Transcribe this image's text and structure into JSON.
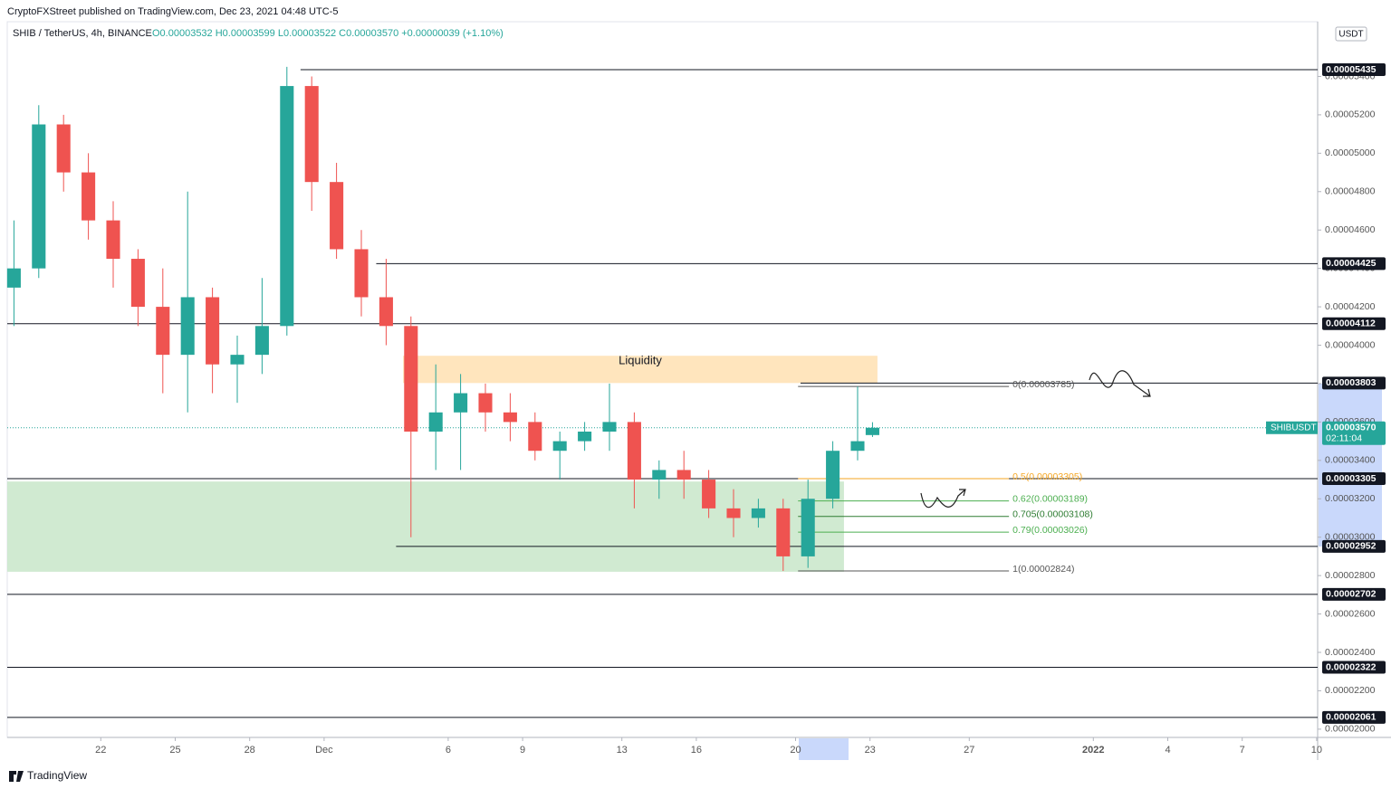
{
  "chart_data": {
    "type": "candlestick",
    "published": "CryptoFXStreet published on TradingView.com, Dec 23, 2021 04:48 UTC-5",
    "title": "SHIB / TetherUS, 4h, BINANCE",
    "ohlc_legend": "O0.00003532 H0.00003599 L0.00003522 C0.00003570 +0.00000039 (+1.10%)",
    "y_unit": "USDT",
    "brand": "TradingView",
    "up_color": "#26a69a",
    "down_color": "#ef5350",
    "x": [
      -11.5,
      -10.5,
      -9.5,
      -8.5,
      -7.5,
      -6.5,
      -5.5,
      -4.5,
      -3.5,
      -2.5,
      -1.5,
      -0.5,
      0.5,
      1.5,
      2.5,
      3.5,
      4.5,
      5.5,
      6.5,
      7.5,
      8.5,
      9.5,
      10.5,
      11.5,
      12.5,
      13.5,
      14.5,
      15.5,
      16.5,
      17.5,
      18.5,
      19.5,
      20.5,
      21.5,
      22.5,
      23.1
    ],
    "open": [
      4.3e-05,
      4.4e-05,
      5.15e-05,
      4.9e-05,
      4.65e-05,
      4.45e-05,
      4.2e-05,
      3.95e-05,
      4.25e-05,
      3.9e-05,
      3.95e-05,
      4.1e-05,
      5.35e-05,
      4.85e-05,
      4.5e-05,
      4.25e-05,
      4.1e-05,
      3.55e-05,
      3.65e-05,
      3.75e-05,
      3.65e-05,
      3.6e-05,
      3.45e-05,
      3.5e-05,
      3.55e-05,
      3.6e-05,
      3.3e-05,
      3.35e-05,
      3.3e-05,
      3.15e-05,
      3.1e-05,
      3.15e-05,
      2.9e-05,
      3.2e-05,
      3.45e-05,
      3.532e-05
    ],
    "high": [
      4.65e-05,
      5.25e-05,
      5.2e-05,
      5e-05,
      4.75e-05,
      4.5e-05,
      4.4e-05,
      4.8e-05,
      4.3e-05,
      4.05e-05,
      4.35e-05,
      5.45e-05,
      5.4e-05,
      4.95e-05,
      4.6e-05,
      4.45e-05,
      4.15e-05,
      3.9e-05,
      3.85e-05,
      3.8e-05,
      3.75e-05,
      3.65e-05,
      3.55e-05,
      3.6e-05,
      3.8e-05,
      3.65e-05,
      3.4e-05,
      3.45e-05,
      3.35e-05,
      3.25e-05,
      3.2e-05,
      3.2e-05,
      3.3e-05,
      3.5e-05,
      3.785e-05,
      3.599e-05
    ],
    "low": [
      4.1e-05,
      4.35e-05,
      4.8e-05,
      4.55e-05,
      4.3e-05,
      4.1e-05,
      3.75e-05,
      3.65e-05,
      3.75e-05,
      3.7e-05,
      3.85e-05,
      4.05e-05,
      4.7e-05,
      4.45e-05,
      4.15e-05,
      4e-05,
      3e-05,
      3.35e-05,
      3.35e-05,
      3.55e-05,
      3.5e-05,
      3.4e-05,
      3.3e-05,
      3.45e-05,
      3.45e-05,
      3.15e-05,
      3.2e-05,
      3.2e-05,
      3.1e-05,
      3e-05,
      3.05e-05,
      2.824e-05,
      2.84e-05,
      3.15e-05,
      3.4e-05,
      3.522e-05
    ],
    "close": [
      4.4e-05,
      5.15e-05,
      4.9e-05,
      4.65e-05,
      4.45e-05,
      4.2e-05,
      3.95e-05,
      4.25e-05,
      3.9e-05,
      3.95e-05,
      4.1e-05,
      5.35e-05,
      4.85e-05,
      4.5e-05,
      4.25e-05,
      4.1e-05,
      3.55e-05,
      3.65e-05,
      3.75e-05,
      3.65e-05,
      3.6e-05,
      3.45e-05,
      3.5e-05,
      3.55e-05,
      3.6e-05,
      3.3e-05,
      3.35e-05,
      3.3e-05,
      3.15e-05,
      3.1e-05,
      3.15e-05,
      2.9e-05,
      3.2e-05,
      3.45e-05,
      3.5e-05,
      3.57e-05
    ],
    "xlim": [
      -11.77,
      41.04
    ],
    "xticks": [
      {
        "value": -8,
        "label": "22"
      },
      {
        "value": -5,
        "label": "25"
      },
      {
        "value": -2,
        "label": "28"
      },
      {
        "value": 1,
        "label": "Dec"
      },
      6,
      9,
      13,
      16,
      20,
      23,
      27,
      {
        "value": 32,
        "label": "2022"
      },
      {
        "value": 35,
        "label": "4"
      },
      {
        "value": 38,
        "label": "7"
      },
      {
        "value": 41,
        "label": "10"
      }
    ],
    "ylim": [
      1.957e-05,
      5.685e-05
    ],
    "yticks": [
      {
        "value": 2e-05,
        "label": "0.00002000"
      },
      {
        "value": 2.2e-05,
        "label": "0.00002200"
      },
      {
        "value": 2.4e-05,
        "label": "0.00002400"
      },
      {
        "value": 2.6e-05,
        "label": "0.00002600"
      },
      {
        "value": 2.8e-05,
        "label": "0.00002800"
      },
      {
        "value": 3e-05,
        "label": "0.00003000"
      },
      {
        "value": 3.2e-05,
        "label": "0.00003200"
      },
      {
        "value": 3.4e-05,
        "label": "0.00003400"
      },
      {
        "value": 3.6e-05,
        "label": "0.00003600"
      },
      {
        "value": 3.8e-05,
        "label": "0.00003800"
      },
      {
        "value": 4e-05,
        "label": "0.00004000"
      },
      {
        "value": 4.2e-05,
        "label": "0.00004200"
      },
      {
        "value": 4.4e-05,
        "label": "0.00004400"
      },
      {
        "value": 4.6e-05,
        "label": "0.00004600"
      },
      {
        "value": 4.8e-05,
        "label": "0.00004800"
      },
      {
        "value": 5e-05,
        "label": "0.00005000"
      },
      {
        "value": 5.2e-05,
        "label": "0.00005200"
      },
      {
        "value": 5.4e-05,
        "label": "0.00005400"
      }
    ],
    "grid": false,
    "last_price": {
      "value": 3.57e-05,
      "label": "0.00003570"
    },
    "symbol_tag": "SHIBUSDT",
    "countdown": "02:11:04",
    "levels": [
      {
        "value": 5.435e-05,
        "label": "0.00005435",
        "from": 0.05
      },
      {
        "value": 4.425e-05,
        "label": "0.00004425",
        "from": 3.1
      },
      {
        "value": 4.112e-05,
        "label": "0.00004112"
      },
      {
        "value": 3.803e-05,
        "label": "0.00003803",
        "from": 20.2
      },
      {
        "value": 3.305e-05,
        "label": "0.00003305"
      },
      {
        "value": 2.952e-05,
        "label": "0.00002952",
        "from": 3.9
      },
      {
        "value": 2.702e-05,
        "label": "0.00002702"
      },
      {
        "value": 2.322e-05,
        "label": "0.00002322"
      },
      {
        "value": 2.061e-05,
        "label": "0.00002061"
      }
    ],
    "fib_range": [
      20.1,
      28.6
    ],
    "fib": [
      {
        "value": 3.785e-05,
        "label": "0(0.00003785)",
        "color": "#555555"
      },
      {
        "value": 3.305e-05,
        "label": "0.5(0.00003305)",
        "color": "#f5a623"
      },
      {
        "value": 3.189e-05,
        "label": "0.62(0.00003189)",
        "color": "#4caf50"
      },
      {
        "value": 3.108e-05,
        "label": "0.705(0.00003108)",
        "color": "#2e7d32"
      },
      {
        "value": 3.026e-05,
        "label": "0.79(0.00003026)",
        "color": "#4caf50"
      },
      {
        "value": 2.824e-05,
        "label": "1(0.00002824)",
        "color": "#555555"
      }
    ],
    "zones": [
      {
        "label": "Liquidity",
        "x": [
          4.18,
          23.3
        ],
        "y": [
          3.803e-05,
          3.945e-05
        ],
        "color": "#ffe0b2"
      },
      {
        "x": [
          -11.77,
          21.95
        ],
        "y": [
          2.82e-05,
          3.29e-05
        ],
        "color": "#c8e6c9"
      }
    ]
  }
}
